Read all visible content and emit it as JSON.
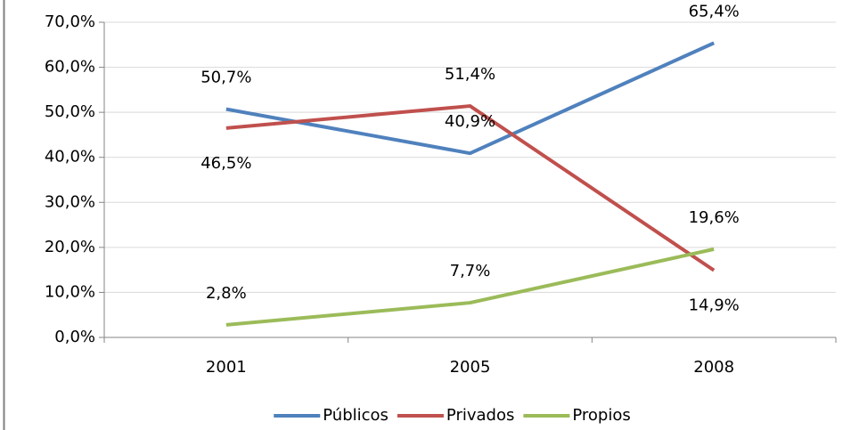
{
  "chart_data": {
    "type": "line",
    "categories": [
      "2001",
      "2005",
      "2008"
    ],
    "series": [
      {
        "name": "Públicos",
        "color": "#4f81bd",
        "values": [
          50.7,
          40.9,
          65.4
        ],
        "value_labels": [
          "50,7%",
          "40,9%",
          "65,4%"
        ]
      },
      {
        "name": "Privados",
        "color": "#c0504d",
        "values": [
          46.5,
          51.4,
          14.9
        ],
        "value_labels": [
          "46,5%",
          "51,4%",
          "14,9%"
        ]
      },
      {
        "name": "Propios",
        "color": "#9bbb59",
        "values": [
          2.8,
          7.7,
          19.6
        ],
        "value_labels": [
          "2,8%",
          "7,7%",
          "19,6%"
        ]
      }
    ],
    "ylim": [
      0,
      70
    ],
    "yticks": [
      {
        "value": 0,
        "label": "0,0%"
      },
      {
        "value": 10,
        "label": "10,0%"
      },
      {
        "value": 20,
        "label": "20,0%"
      },
      {
        "value": 30,
        "label": "30,0%"
      },
      {
        "value": 40,
        "label": "40,0%"
      },
      {
        "value": 50,
        "label": "50,0%"
      },
      {
        "value": 60,
        "label": "60,0%"
      },
      {
        "value": 70,
        "label": "70,0%"
      }
    ],
    "grid": true,
    "legend": "bottom"
  }
}
